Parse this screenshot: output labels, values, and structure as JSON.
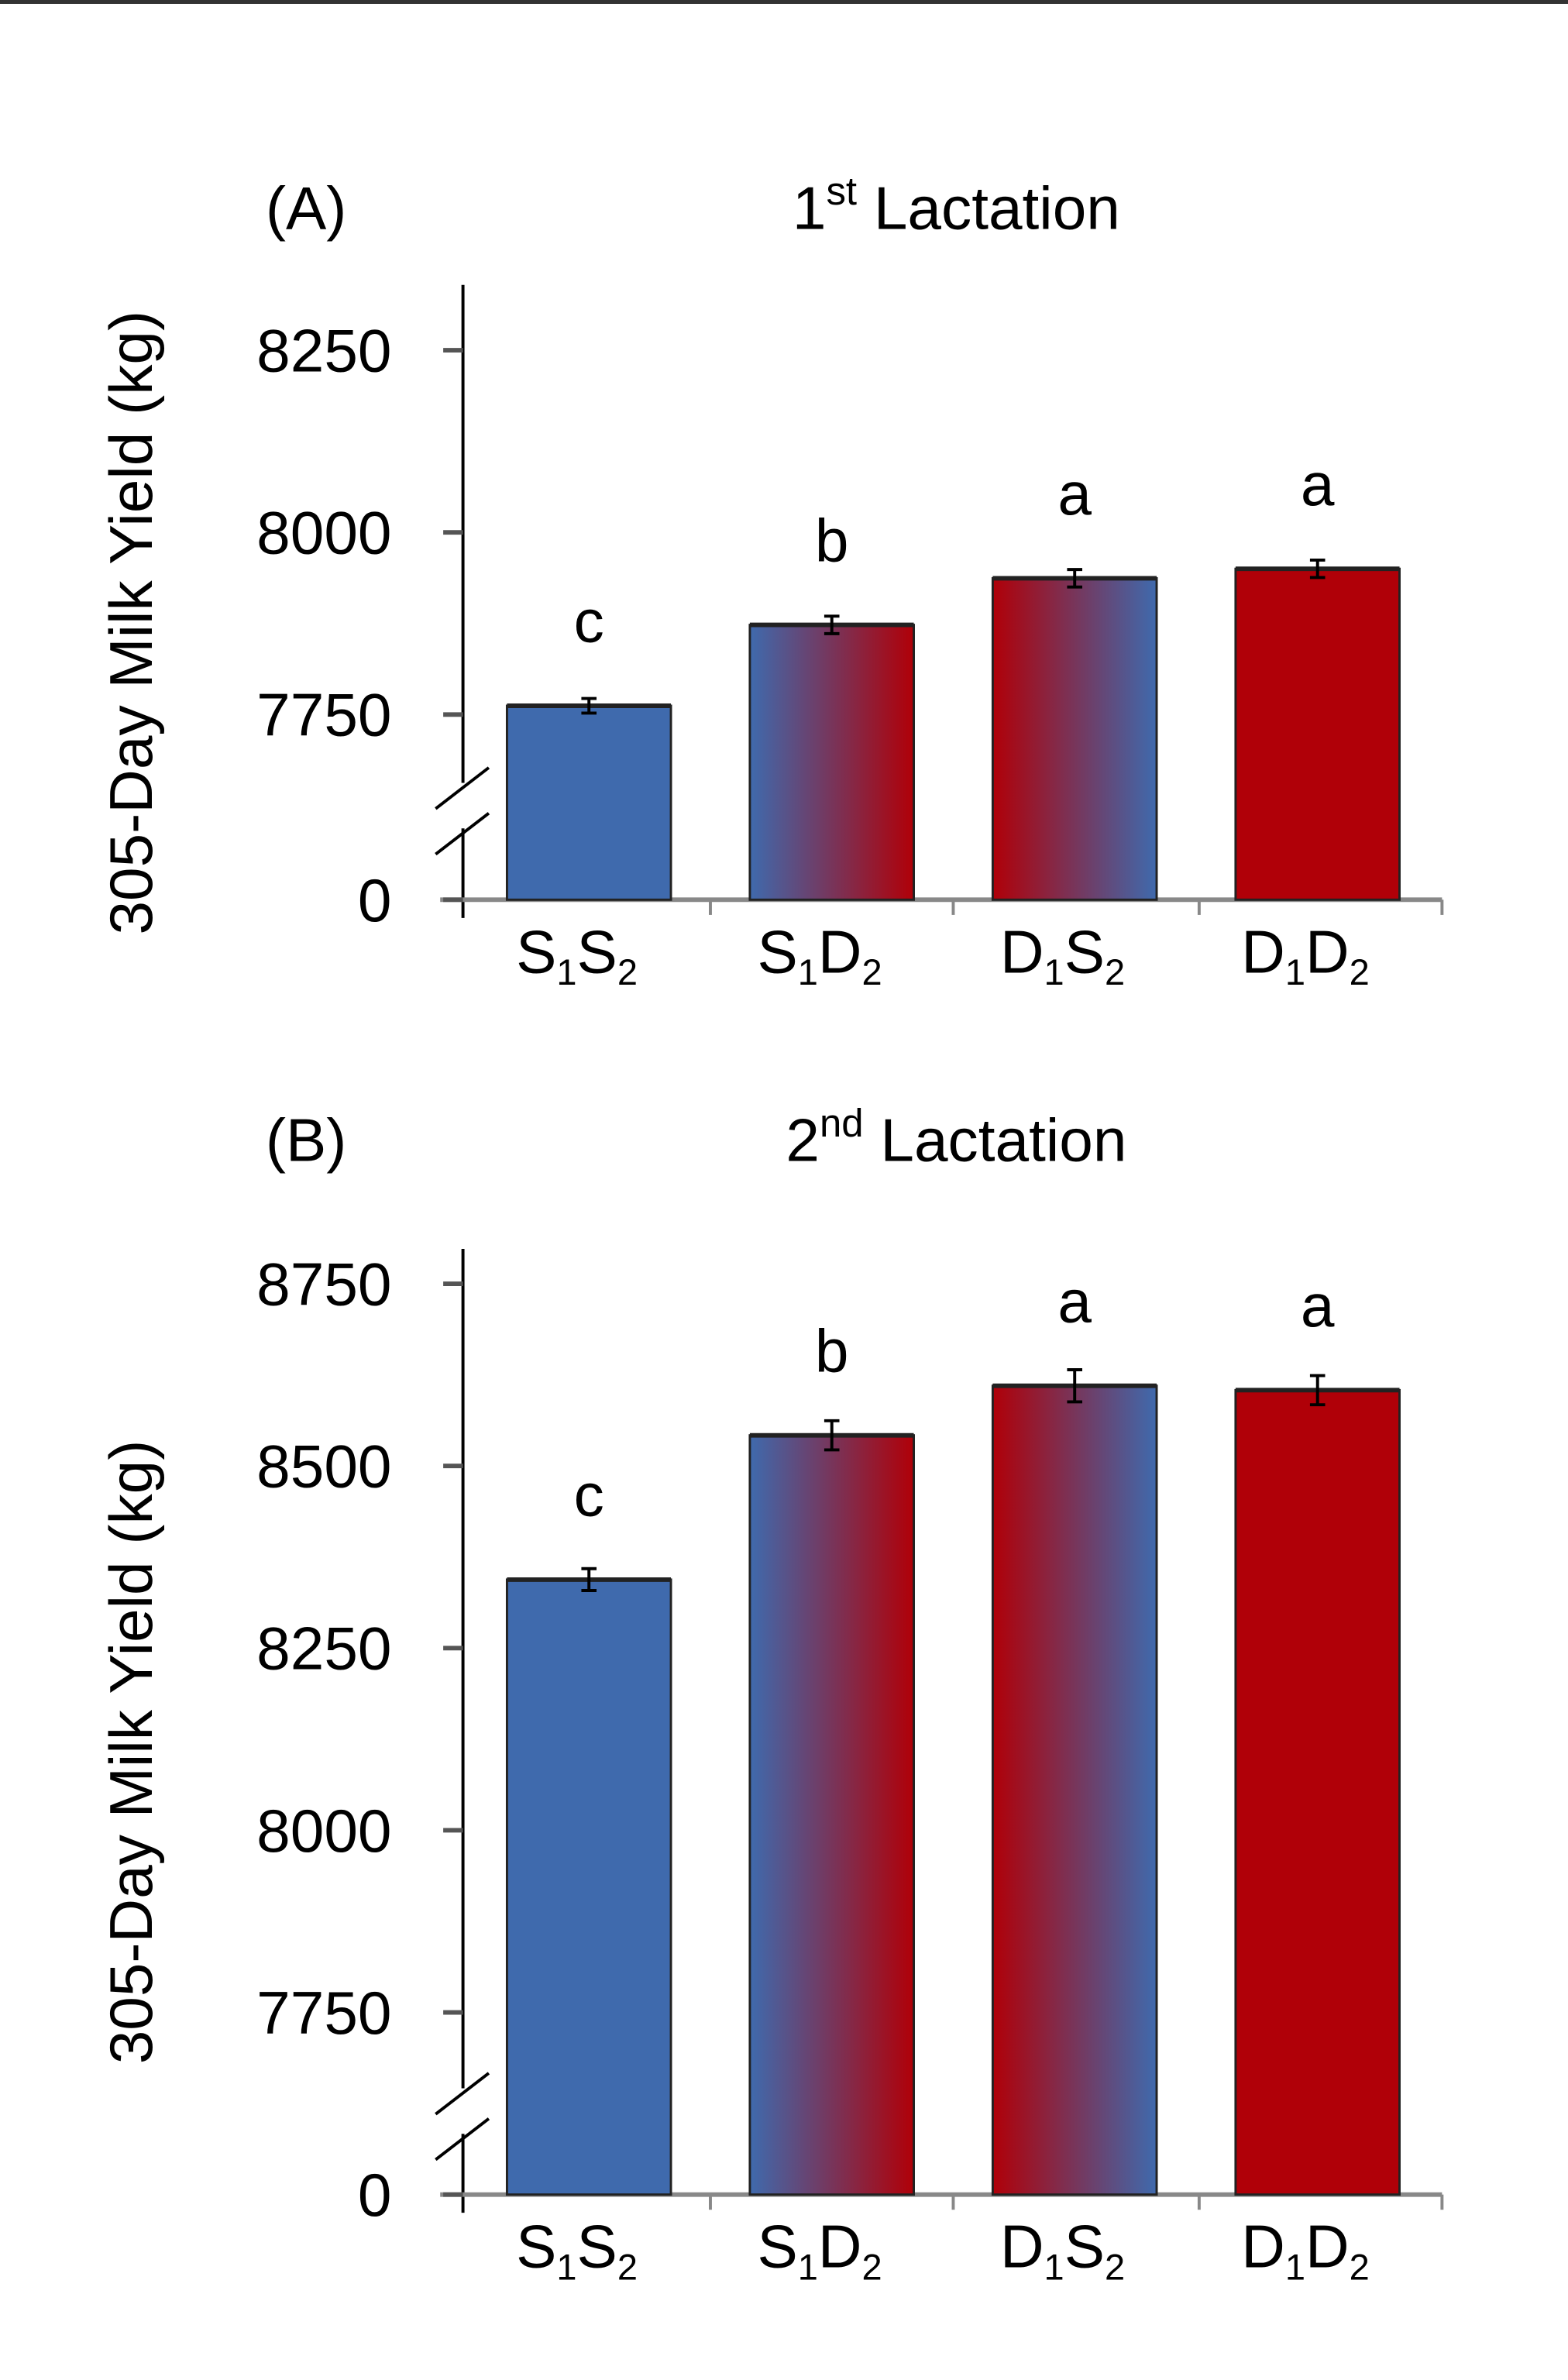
{
  "colors": {
    "blue": "#3f6aad",
    "red": "#b00008",
    "axis": "#000000"
  },
  "chart_data": [
    {
      "type": "bar",
      "panel": "(A)",
      "title_main": "1",
      "title_sup": "st",
      "title_rest": " Lactation",
      "ylabel": "305-Day Milk Yield (kg)",
      "axis_break": true,
      "ylim": [
        7625,
        8325
      ],
      "yticks": [
        0,
        7750,
        8000,
        8250
      ],
      "categories": [
        {
          "a": "S",
          "a_sub": "1",
          "b": "S",
          "b_sub": "2"
        },
        {
          "a": "S",
          "a_sub": "1",
          "b": "D",
          "b_sub": "2"
        },
        {
          "a": "D",
          "a_sub": "1",
          "b": "S",
          "b_sub": "2"
        },
        {
          "a": "D",
          "a_sub": "1",
          "b": "D",
          "b_sub": "2"
        }
      ],
      "values": [
        7762,
        7873,
        7937,
        7950
      ],
      "errors": [
        10,
        12,
        12,
        12
      ],
      "letters": [
        "c",
        "b",
        "a",
        "a"
      ],
      "fills": [
        "blue",
        "blue-red",
        "red-blue",
        "red"
      ]
    },
    {
      "type": "bar",
      "panel": "(B)",
      "title_main": "2",
      "title_sup": "nd",
      "title_rest": " Lactation",
      "ylabel": "305-Day Milk Yield (kg)",
      "axis_break": true,
      "ylim": [
        7625,
        8800
      ],
      "yticks": [
        0,
        7750,
        8000,
        8250,
        8500,
        8750
      ],
      "categories": [
        {
          "a": "S",
          "a_sub": "1",
          "b": "S",
          "b_sub": "2"
        },
        {
          "a": "S",
          "a_sub": "1",
          "b": "D",
          "b_sub": "2"
        },
        {
          "a": "D",
          "a_sub": "1",
          "b": "S",
          "b_sub": "2"
        },
        {
          "a": "D",
          "a_sub": "1",
          "b": "D",
          "b_sub": "2"
        }
      ],
      "values": [
        8344,
        8542,
        8610,
        8604
      ],
      "errors": [
        15,
        20,
        22,
        20
      ],
      "letters": [
        "c",
        "b",
        "a",
        "a"
      ],
      "fills": [
        "blue",
        "blue-red",
        "red-blue",
        "red"
      ]
    }
  ]
}
